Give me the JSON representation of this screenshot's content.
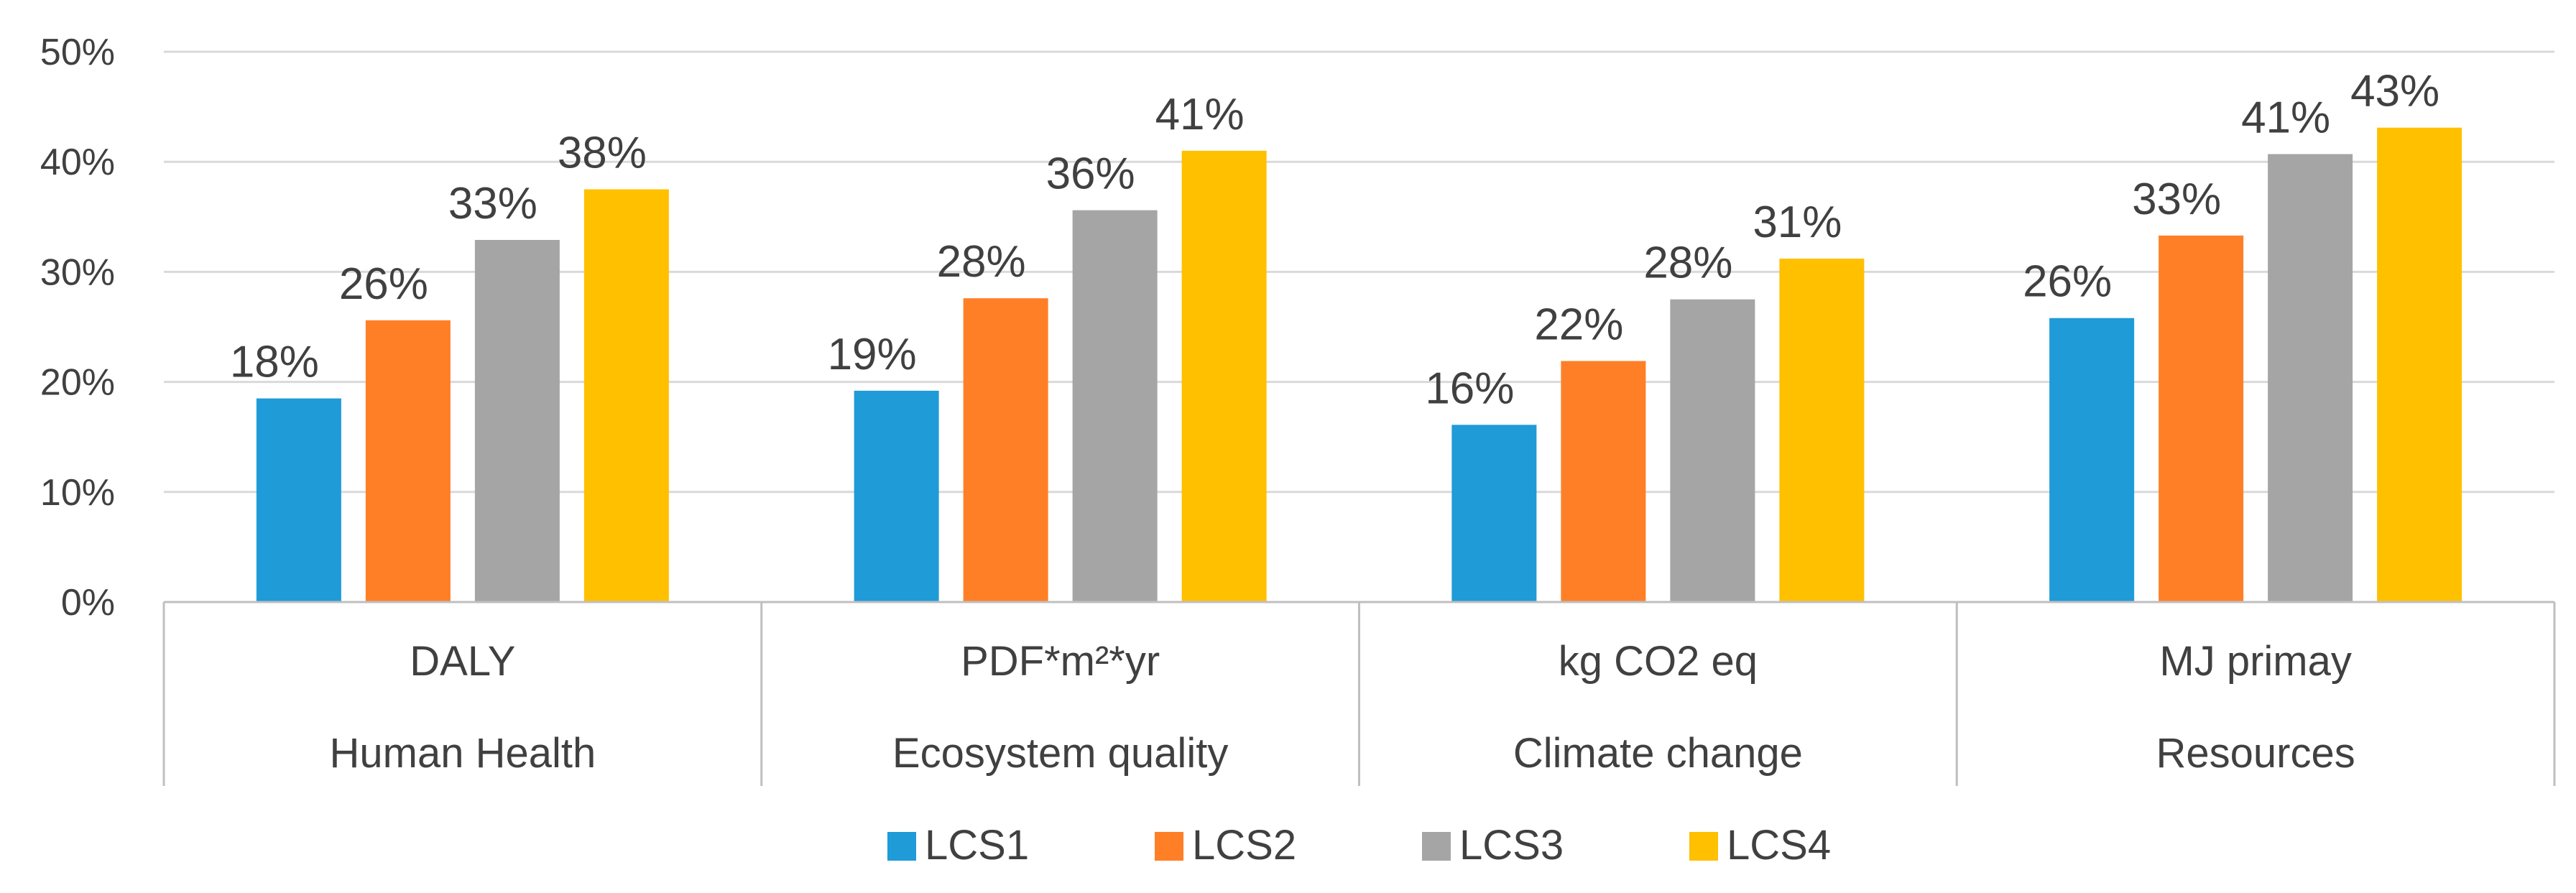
{
  "chart_data": {
    "type": "bar",
    "title": "",
    "xlabel": "",
    "ylabel": "",
    "ylim": [
      0,
      50
    ],
    "yticks": [
      "0%",
      "10%",
      "20%",
      "30%",
      "40%",
      "50%"
    ],
    "grid": true,
    "legend_position": "bottom",
    "categories": [
      {
        "unit": "DALY",
        "name": "Human Health"
      },
      {
        "unit": "PDF*m²*yr",
        "name": "Ecosystem quality"
      },
      {
        "unit": "kg CO2 eq",
        "name": "Climate change"
      },
      {
        "unit": "MJ primay",
        "name": "Resources"
      }
    ],
    "series": [
      {
        "name": "LCS1",
        "color": "#1F9BD8",
        "values": [
          18.5,
          19.2,
          16.1,
          25.8
        ],
        "labels": [
          "18%",
          "19%",
          "16%",
          "26%"
        ]
      },
      {
        "name": "LCS2",
        "color": "#FF7F27",
        "values": [
          25.6,
          27.6,
          21.9,
          33.3
        ],
        "labels": [
          "26%",
          "28%",
          "22%",
          "33%"
        ]
      },
      {
        "name": "LCS3",
        "color": "#A5A5A5",
        "values": [
          32.9,
          35.6,
          27.5,
          40.7
        ],
        "labels": [
          "33%",
          "36%",
          "28%",
          "41%"
        ]
      },
      {
        "name": "LCS4",
        "color": "#FFC000",
        "values": [
          37.5,
          41.0,
          31.2,
          43.1
        ],
        "labels": [
          "38%",
          "41%",
          "31%",
          "43%"
        ]
      }
    ]
  }
}
